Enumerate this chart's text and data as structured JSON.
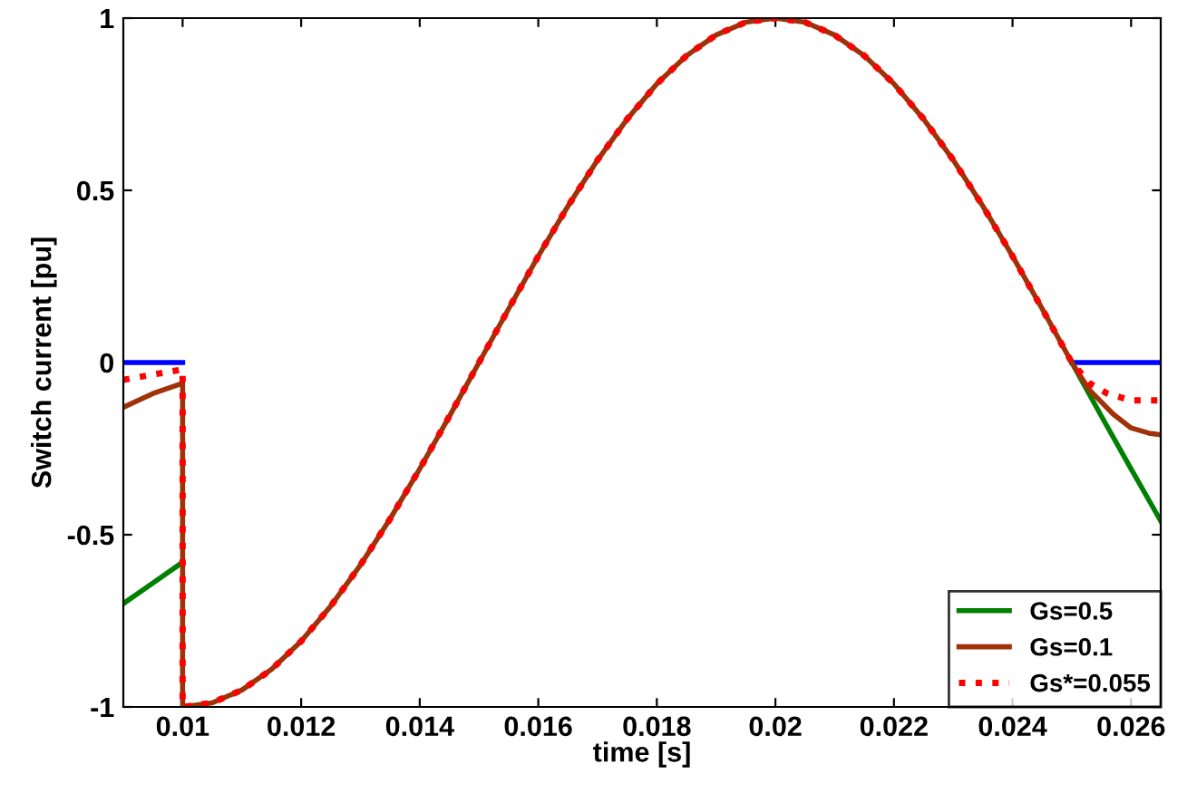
{
  "chart_data": {
    "type": "line",
    "xlabel": "time [s]",
    "ylabel": "Switch current [pu]",
    "xlim": [
      0.009,
      0.0265
    ],
    "ylim": [
      -1,
      1
    ],
    "xticks": [
      0.01,
      0.012,
      0.014,
      0.016,
      0.018,
      0.02,
      0.022,
      0.024,
      0.026
    ],
    "yticks": [
      -1,
      -0.5,
      0,
      0.5,
      1
    ],
    "grid": false,
    "legend": "bottom right",
    "series": [
      {
        "color": "#0000ff",
        "line_style": "solid",
        "x": [
          0.009,
          0.01,
          null,
          0.025,
          0.0265
        ],
        "values": [
          0,
          0,
          null,
          0,
          0
        ]
      },
      {
        "name": "Gs=0.5",
        "color": "#008000",
        "line_style": "solid",
        "x": [
          0.009,
          0.0095,
          0.01,
          null,
          0.025,
          0.0255,
          0.026,
          0.0265
        ],
        "values": [
          -0.7,
          -0.64,
          -0.58,
          null,
          0,
          -0.156,
          -0.309,
          -0.46
        ]
      },
      {
        "name": "Gs=0.1",
        "color": "#a0320a",
        "line_style": "solid",
        "x": [
          0.009,
          0.0095,
          0.01,
          0.01,
          0.0105,
          0.011,
          0.0115,
          0.012,
          0.0125,
          0.013,
          0.0135,
          0.014,
          0.0145,
          0.015,
          0.0155,
          0.016,
          0.0165,
          0.017,
          0.0175,
          0.018,
          0.0185,
          0.019,
          0.0195,
          0.02,
          0.0205,
          0.021,
          0.0215,
          0.022,
          0.0225,
          0.023,
          0.0235,
          0.024,
          0.0245,
          0.025,
          0.0253,
          0.0257,
          0.026,
          0.0263,
          0.0265
        ],
        "values": [
          -0.13,
          -0.09,
          -0.06,
          -1,
          -0.988,
          -0.951,
          -0.891,
          -0.809,
          -0.707,
          -0.588,
          -0.454,
          -0.309,
          -0.156,
          0,
          0.156,
          0.309,
          0.454,
          0.588,
          0.707,
          0.809,
          0.891,
          0.951,
          0.988,
          1,
          0.988,
          0.951,
          0.891,
          0.809,
          0.707,
          0.588,
          0.454,
          0.309,
          0.156,
          0,
          -0.08,
          -0.15,
          -0.19,
          -0.205,
          -0.21
        ]
      },
      {
        "name": "Gs*=0.055",
        "color": "#ff0000",
        "line_style": "dotted",
        "x": [
          0.009,
          0.0095,
          0.01,
          0.01,
          0.0105,
          0.011,
          0.0115,
          0.012,
          0.0125,
          0.013,
          0.0135,
          0.014,
          0.0145,
          0.015,
          0.0155,
          0.016,
          0.0165,
          0.017,
          0.0175,
          0.018,
          0.0185,
          0.019,
          0.0195,
          0.02,
          0.0205,
          0.021,
          0.0215,
          0.022,
          0.0225,
          0.023,
          0.0235,
          0.024,
          0.0245,
          0.025,
          0.0253,
          0.0256,
          0.026,
          0.0265
        ],
        "values": [
          -0.05,
          -0.035,
          -0.02,
          -1,
          -0.988,
          -0.951,
          -0.891,
          -0.809,
          -0.707,
          -0.588,
          -0.454,
          -0.309,
          -0.156,
          0,
          0.156,
          0.309,
          0.454,
          0.588,
          0.707,
          0.809,
          0.891,
          0.951,
          0.988,
          1,
          0.988,
          0.951,
          0.891,
          0.809,
          0.707,
          0.588,
          0.454,
          0.309,
          0.156,
          0,
          -0.06,
          -0.09,
          -0.11,
          -0.11
        ]
      }
    ]
  }
}
